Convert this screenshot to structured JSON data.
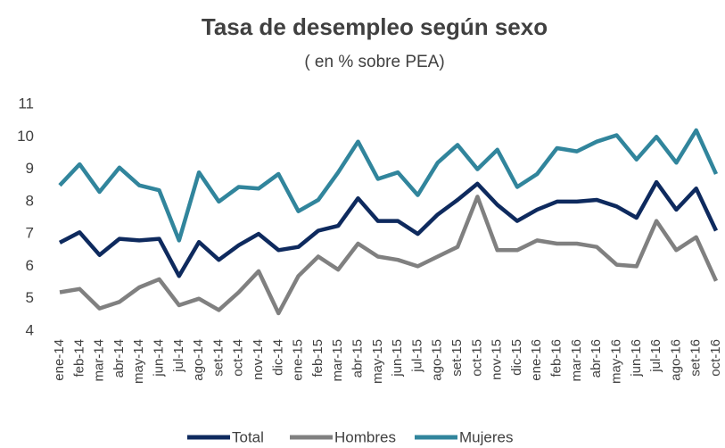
{
  "chart_data": {
    "type": "line",
    "title": "Tasa de desempleo según sexo",
    "subtitle": "( en % sobre PEA)",
    "categories": [
      "ene-14",
      "feb-14",
      "mar-14",
      "abr-14",
      "may-14",
      "jun-14",
      "jul-14",
      "ago-14",
      "set-14",
      "oct-14",
      "nov-14",
      "dic-14",
      "ene-15",
      "feb-15",
      "mar-15",
      "abr-15",
      "may-15",
      "jun-15",
      "jul-15",
      "ago-15",
      "set-15",
      "oct-15",
      "nov-15",
      "dic-15",
      "ene-16",
      "feb-16",
      "mar-16",
      "abr-16",
      "may-16",
      "jun-16",
      "jul-16",
      "ago-16",
      "set-16",
      "oct-16"
    ],
    "series": [
      {
        "name": "Total",
        "color": "#0e2a5e",
        "values": [
          6.73,
          7.05,
          6.35,
          6.85,
          6.8,
          6.85,
          5.7,
          6.75,
          6.2,
          6.65,
          7.0,
          6.5,
          6.6,
          7.1,
          7.25,
          8.1,
          7.4,
          7.4,
          7.0,
          7.6,
          8.05,
          8.55,
          7.9,
          7.4,
          7.75,
          8.0,
          8.0,
          8.05,
          7.85,
          7.5,
          8.6,
          7.75,
          8.4,
          7.1
        ]
      },
      {
        "name": "Hombres",
        "color": "#808080",
        "values": [
          5.2,
          5.3,
          4.7,
          4.9,
          5.35,
          5.6,
          4.8,
          5.0,
          4.65,
          5.2,
          5.85,
          4.55,
          5.7,
          6.3,
          5.9,
          6.7,
          6.3,
          6.2,
          6.0,
          6.3,
          6.6,
          8.15,
          6.5,
          6.5,
          6.8,
          6.7,
          6.7,
          6.6,
          6.05,
          6.0,
          7.4,
          6.5,
          6.9,
          5.55
        ]
      },
      {
        "name": "Mujeres",
        "color": "#31859c",
        "values": [
          8.5,
          9.15,
          8.3,
          9.05,
          8.5,
          8.35,
          6.8,
          8.9,
          8.0,
          8.45,
          8.4,
          8.85,
          7.7,
          8.05,
          8.9,
          9.85,
          8.7,
          8.9,
          8.2,
          9.2,
          9.75,
          9.0,
          9.6,
          8.45,
          8.85,
          9.65,
          9.55,
          9.85,
          10.05,
          9.3,
          10.0,
          9.2,
          10.2,
          8.85
        ]
      }
    ],
    "ylim": [
      4,
      11
    ],
    "yticks": [
      4,
      5,
      6,
      7,
      8,
      9,
      10,
      11
    ],
    "grid": false,
    "legend": "bottom"
  }
}
